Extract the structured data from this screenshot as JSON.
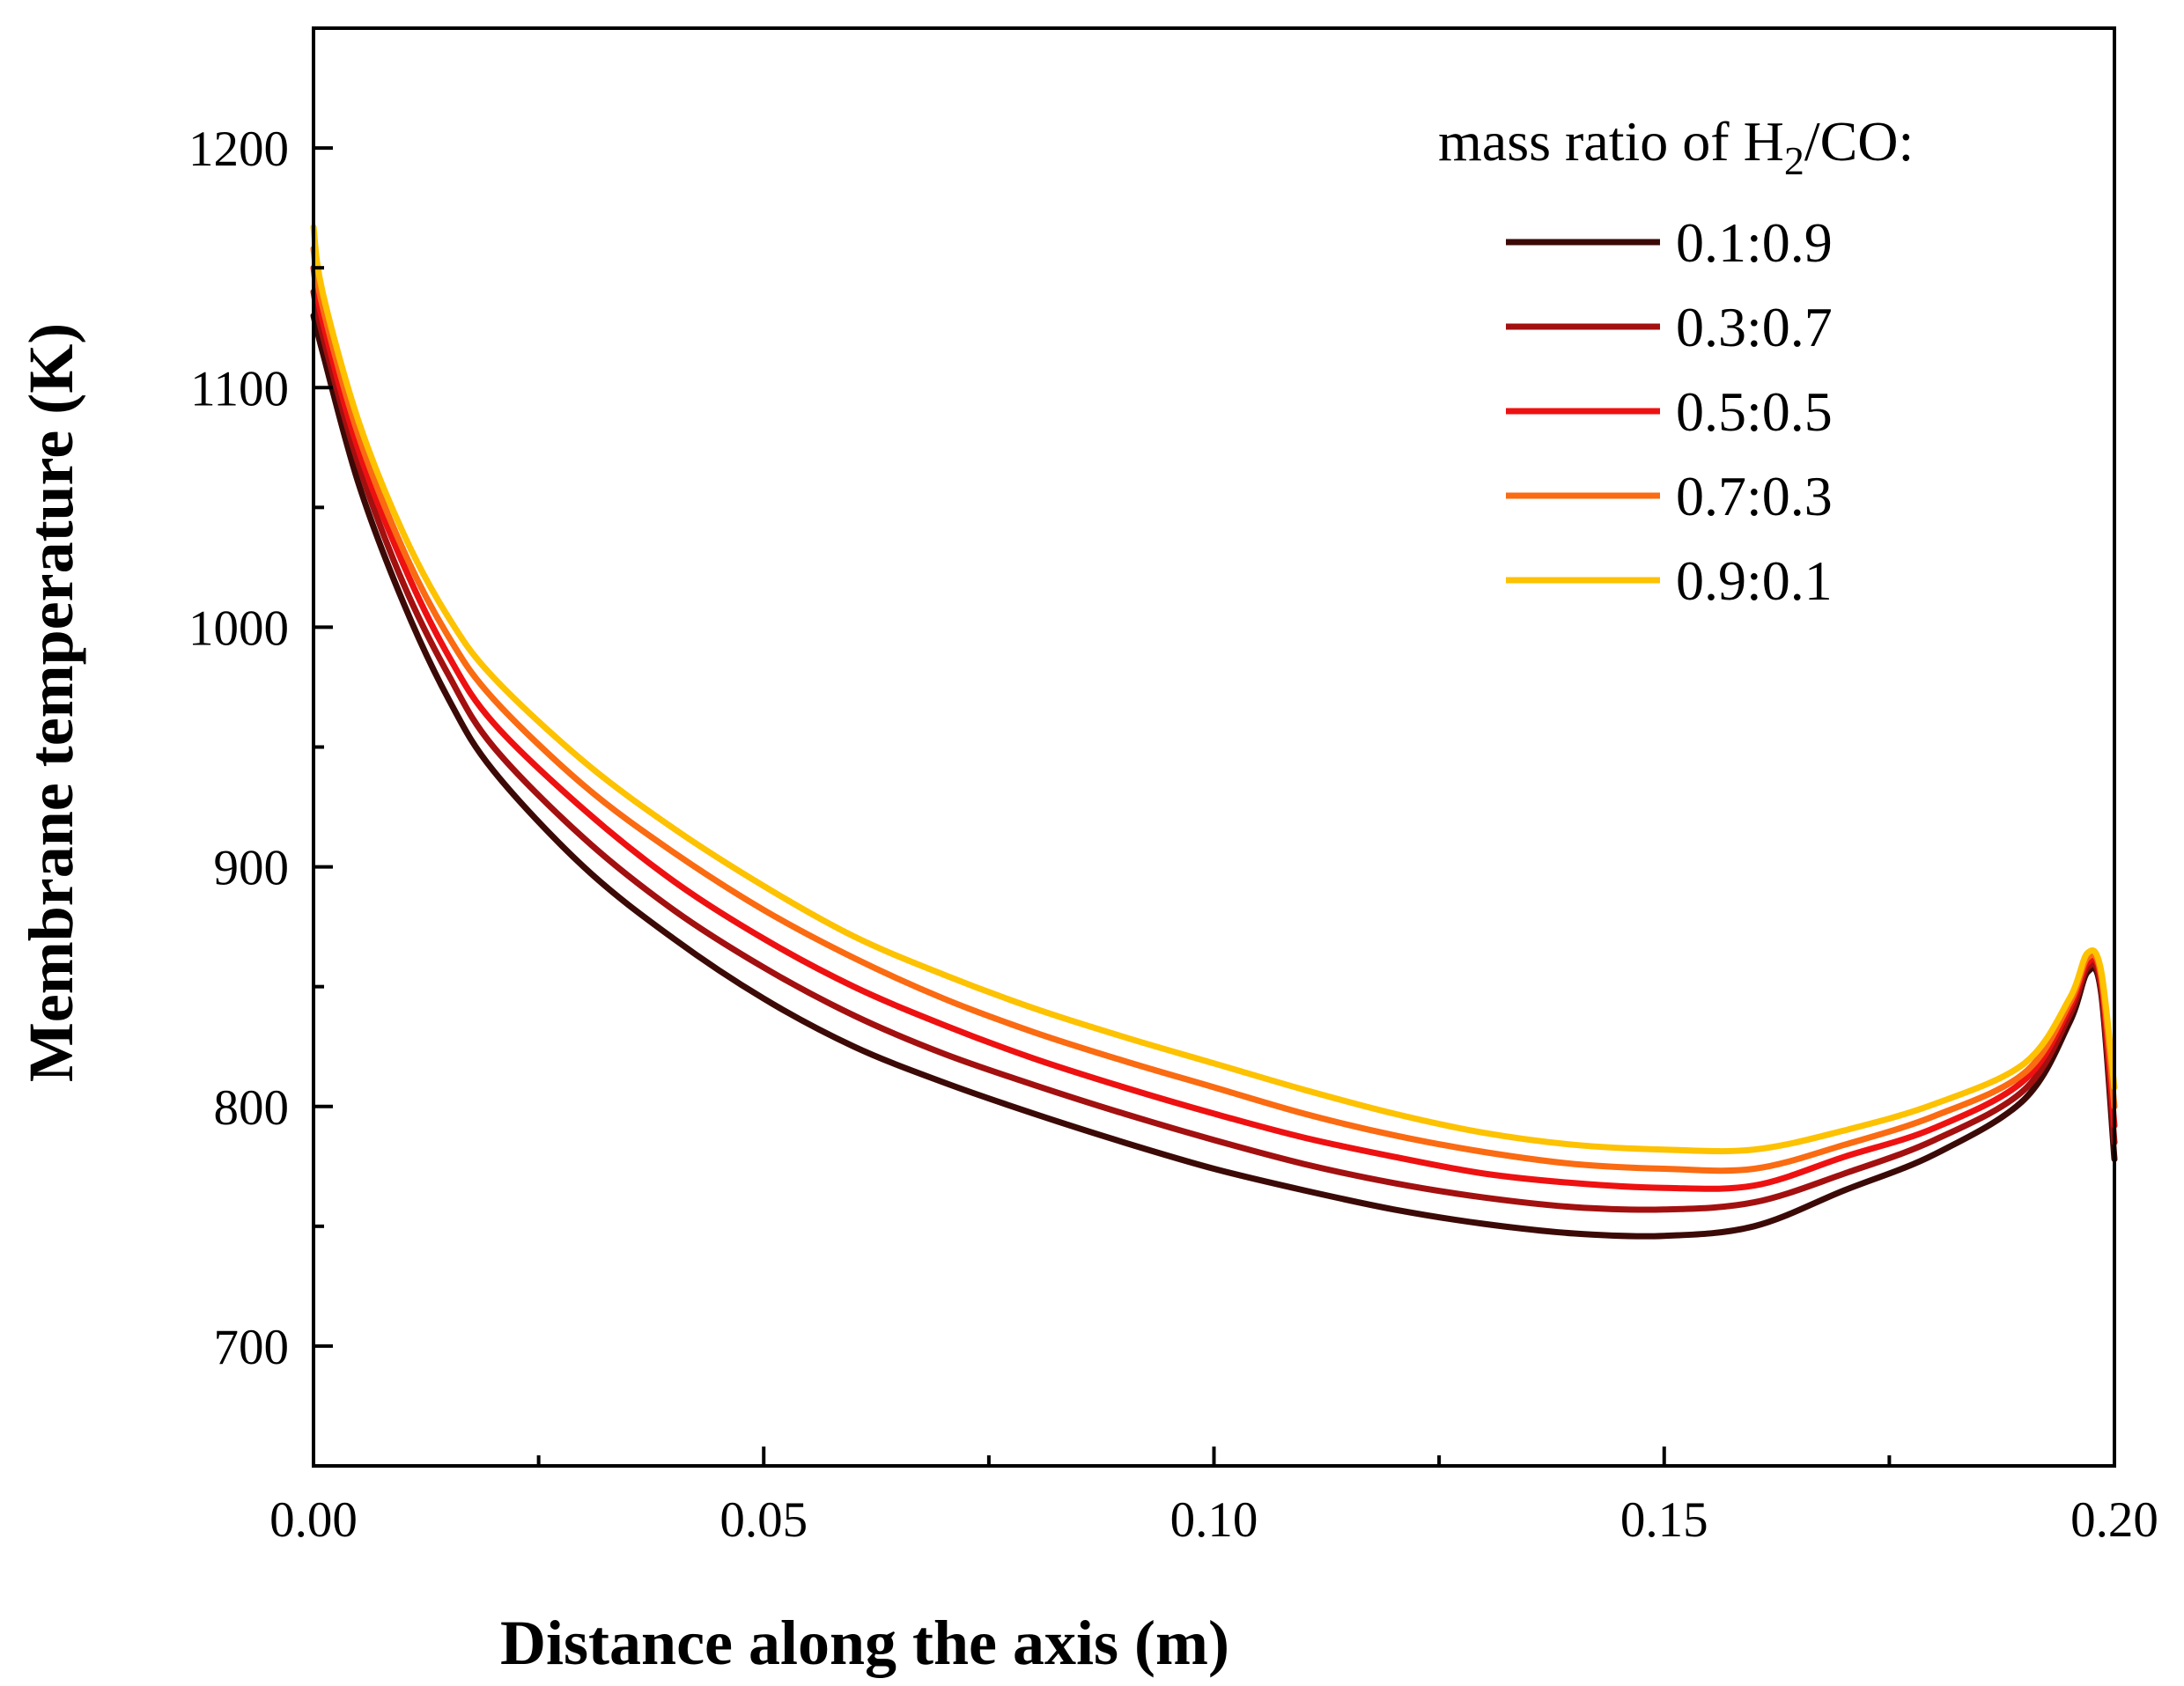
{
  "chart_data": {
    "type": "line",
    "title": "",
    "xlabel": "Distance along the axis (m)",
    "ylabel": "Membrane temperature (K)",
    "xlim": [
      0,
      0.2
    ],
    "ylim": [
      650,
      1250
    ],
    "x_ticks": [
      0,
      0.05,
      0.1,
      0.15,
      0.2
    ],
    "x_tick_labels": [
      "0.00",
      "0.05",
      "0.10",
      "0.15",
      "0.20"
    ],
    "x_minor_ticks": [
      0.025,
      0.075,
      0.125,
      0.175
    ],
    "y_ticks": [
      700,
      800,
      900,
      1000,
      1100,
      1200
    ],
    "y_tick_labels": [
      "700",
      "800",
      "900",
      "1000",
      "1100",
      "1200"
    ],
    "y_minor_ticks": [
      750,
      850,
      950,
      1050,
      1150
    ],
    "grid": false,
    "legend": {
      "title_prefix": "mass ratio of H",
      "title_subscript": "2",
      "title_suffix": "/CO:",
      "position": "top-right"
    },
    "x": [
      0.0,
      0.001,
      0.005,
      0.01,
      0.015,
      0.02,
      0.03,
      0.04,
      0.05,
      0.06,
      0.07,
      0.08,
      0.09,
      0.1,
      0.11,
      0.12,
      0.13,
      0.14,
      0.15,
      0.16,
      0.17,
      0.18,
      0.19,
      0.195,
      0.197,
      0.1985,
      0.2
    ],
    "series": [
      {
        "name": "0.1:0.9",
        "color": "#3b0a07",
        "values": [
          1130,
          1115,
          1060,
          1010,
          970,
          940,
          900,
          870,
          845,
          825,
          810,
          797,
          785,
          774,
          765,
          757,
          751,
          747,
          746,
          750,
          765,
          780,
          803,
          835,
          856,
          848,
          778
        ]
      },
      {
        "name": "0.3:0.7",
        "color": "#a31010",
        "values": [
          1140,
          1122,
          1068,
          1018,
          980,
          950,
          912,
          882,
          858,
          838,
          822,
          809,
          797,
          786,
          776,
          768,
          762,
          758,
          757,
          760,
          772,
          786,
          807,
          838,
          858,
          850,
          785
        ]
      },
      {
        "name": "0.5:0.5",
        "color": "#ee1111",
        "values": [
          1150,
          1128,
          1074,
          1026,
          988,
          960,
          924,
          894,
          870,
          850,
          834,
          820,
          808,
          797,
          787,
          779,
          772,
          768,
          766,
          767,
          779,
          791,
          811,
          841,
          860,
          853,
          792
        ]
      },
      {
        "name": "0.7:0.3",
        "color": "#fa6b12",
        "values": [
          1158,
          1134,
          1080,
          1032,
          996,
          970,
          934,
          906,
          882,
          862,
          845,
          831,
          819,
          808,
          797,
          788,
          781,
          776,
          774,
          774,
          784,
          796,
          814,
          843,
          862,
          855,
          800
        ]
      },
      {
        "name": "0.9:0.1",
        "color": "#fdc200",
        "values": [
          1167,
          1140,
          1086,
          1039,
          1004,
          979,
          944,
          916,
          892,
          871,
          855,
          841,
          829,
          818,
          807,
          797,
          789,
          784,
          782,
          782,
          790,
          801,
          818,
          845,
          864,
          857,
          808
        ]
      }
    ]
  }
}
